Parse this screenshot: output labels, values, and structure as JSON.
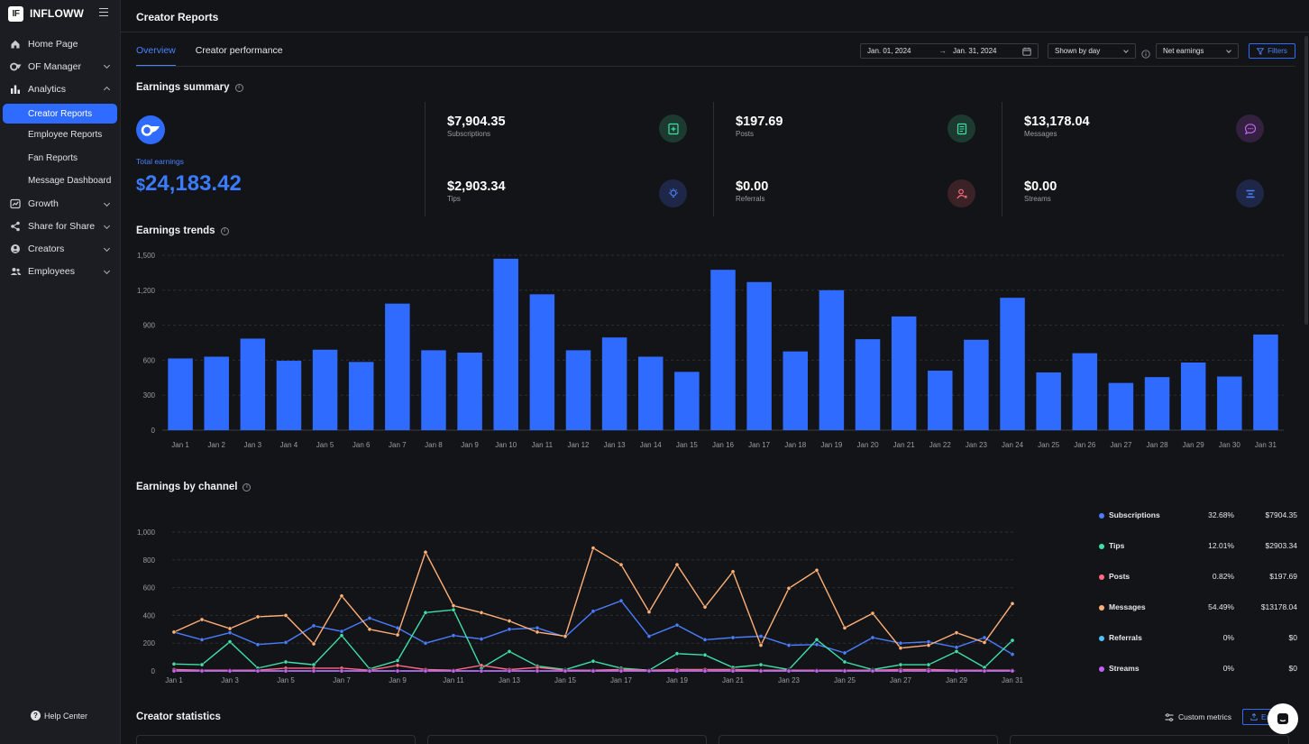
{
  "app": {
    "logo_text": "IF",
    "name": "INFLOWW"
  },
  "sidebar": {
    "items": [
      {
        "label": "Home Page",
        "icon": "home-icon",
        "chevron": ""
      },
      {
        "label": "OF Manager",
        "icon": "of-manager-icon",
        "chevron": "down"
      },
      {
        "label": "Analytics",
        "icon": "bar-chart-icon",
        "chevron": "up"
      },
      {
        "label": "Growth",
        "icon": "growth-icon",
        "chevron": "down"
      },
      {
        "label": "Share for Share",
        "icon": "share-icon",
        "chevron": "down"
      },
      {
        "label": "Creators",
        "icon": "user-circle-icon",
        "chevron": "down"
      },
      {
        "label": "Employees",
        "icon": "users-icon",
        "chevron": "down"
      }
    ],
    "analytics_sub": [
      "Creator Reports",
      "Employee Reports",
      "Fan Reports",
      "Message Dashboard"
    ],
    "active_sub": "Creator Reports",
    "help": "Help Center"
  },
  "header": {
    "title": "Creator Reports"
  },
  "tabs": {
    "overview": "Overview",
    "creator_performance": "Creator performance"
  },
  "controls": {
    "date_start": "Jan. 01, 2024",
    "arrow": "→",
    "date_end": "Jan. 31, 2024",
    "granularity": "Shown by day",
    "metric": "Net earnings",
    "filters": "Filters"
  },
  "summary": {
    "title": "Earnings summary",
    "total_label": "Total earnings",
    "total_currency": "$",
    "total_value": "24,183.42",
    "metrics": {
      "subscriptions": {
        "value": "$7,904.35",
        "label": "Subscriptions"
      },
      "tips": {
        "value": "$2,903.34",
        "label": "Tips"
      },
      "posts": {
        "value": "$197.69",
        "label": "Posts"
      },
      "referrals": {
        "value": "$0.00",
        "label": "Referrals"
      },
      "messages": {
        "value": "$13,178.04",
        "label": "Messages"
      },
      "streams": {
        "value": "$0.00",
        "label": "Streams"
      }
    }
  },
  "trends": {
    "title": "Earnings trends"
  },
  "channel": {
    "title": "Earnings by channel"
  },
  "chart_data": [
    {
      "type": "bar",
      "title": "",
      "categories": [
        "Jan 1",
        "Jan 2",
        "Jan 3",
        "Jan 4",
        "Jan 5",
        "Jan 6",
        "Jan 7",
        "Jan 8",
        "Jan 9",
        "Jan 10",
        "Jan 11",
        "Jan 12",
        "Jan 13",
        "Jan 14",
        "Jan 15",
        "Jan 16",
        "Jan 17",
        "Jan 18",
        "Jan 19",
        "Jan 20",
        "Jan 21",
        "Jan 22",
        "Jan 23",
        "Jan 24",
        "Jan 25",
        "Jan 26",
        "Jan 27",
        "Jan 28",
        "Jan 29",
        "Jan 30",
        "Jan 31"
      ],
      "values": [
        615,
        630,
        785,
        595,
        690,
        585,
        1085,
        685,
        665,
        1470,
        1165,
        685,
        795,
        630,
        500,
        1375,
        1270,
        675,
        1200,
        780,
        975,
        510,
        775,
        1135,
        495,
        660,
        405,
        455,
        580,
        460,
        820
      ],
      "yticks": [
        0,
        300,
        600,
        900,
        1200,
        1500
      ],
      "ytick_labels": [
        "0",
        "300",
        "600",
        "900",
        "1,200",
        "1,500"
      ],
      "ylim": [
        0,
        1500
      ],
      "color": "#2f6bff",
      "grid": true
    },
    {
      "type": "line",
      "title": "",
      "x": [
        "Jan 1",
        "Jan 2",
        "Jan 3",
        "Jan 4",
        "Jan 5",
        "Jan 6",
        "Jan 7",
        "Jan 8",
        "Jan 9",
        "Jan 10",
        "Jan 11",
        "Jan 12",
        "Jan 13",
        "Jan 14",
        "Jan 15",
        "Jan 16",
        "Jan 17",
        "Jan 18",
        "Jan 19",
        "Jan 20",
        "Jan 21",
        "Jan 22",
        "Jan 23",
        "Jan 24",
        "Jan 25",
        "Jan 26",
        "Jan 27",
        "Jan 28",
        "Jan 29",
        "Jan 30",
        "Jan 31"
      ],
      "xtick_labels": [
        "Jan 1",
        "Jan 3",
        "Jan 5",
        "Jan 7",
        "Jan 9",
        "Jan 11",
        "Jan 13",
        "Jan 15",
        "Jan 17",
        "Jan 19",
        "Jan 21",
        "Jan 23",
        "Jan 25",
        "Jan 27",
        "Jan 29",
        "Jan 31"
      ],
      "yticks": [
        0,
        200,
        400,
        600,
        800,
        1000
      ],
      "ytick_labels": [
        "0",
        "200",
        "400",
        "600",
        "800",
        "1,000"
      ],
      "ylim": [
        0,
        1000
      ],
      "grid": true,
      "series": [
        {
          "name": "Subscriptions",
          "color": "#4a7dff",
          "percent": "32.68%",
          "amount": "$7904.35",
          "values": [
            280,
            225,
            275,
            190,
            205,
            325,
            285,
            380,
            310,
            200,
            255,
            230,
            300,
            310,
            245,
            430,
            505,
            250,
            330,
            225,
            240,
            250,
            185,
            190,
            130,
            240,
            200,
            210,
            170,
            240,
            120
          ]
        },
        {
          "name": "Tips",
          "color": "#3ee0a6",
          "percent": "12.01%",
          "amount": "$2903.34",
          "values": [
            50,
            45,
            210,
            20,
            65,
            45,
            255,
            15,
            75,
            420,
            440,
            20,
            140,
            35,
            10,
            70,
            20,
            5,
            125,
            115,
            25,
            45,
            10,
            225,
            65,
            10,
            45,
            45,
            140,
            25,
            220
          ]
        },
        {
          "name": "Posts",
          "color": "#ff6b81",
          "percent": "0.82%",
          "amount": "$197.69",
          "values": [
            10,
            5,
            5,
            5,
            20,
            20,
            20,
            5,
            40,
            10,
            5,
            40,
            10,
            25,
            5,
            5,
            10,
            5,
            10,
            10,
            10,
            5,
            5,
            5,
            5,
            5,
            10,
            10,
            5,
            5,
            5
          ]
        },
        {
          "name": "Messages",
          "color": "#ffb077",
          "percent": "54.49%",
          "amount": "$13178.04",
          "values": [
            280,
            370,
            305,
            390,
            400,
            195,
            540,
            300,
            260,
            855,
            470,
            420,
            360,
            280,
            250,
            885,
            765,
            425,
            765,
            460,
            715,
            185,
            595,
            725,
            310,
            415,
            165,
            185,
            275,
            205,
            485
          ]
        },
        {
          "name": "Referrals",
          "color": "#4fc3f7",
          "percent": "0%",
          "amount": "$0",
          "values": [
            0,
            0,
            0,
            0,
            0,
            0,
            0,
            0,
            0,
            0,
            0,
            0,
            0,
            0,
            0,
            0,
            0,
            0,
            0,
            0,
            0,
            0,
            0,
            0,
            0,
            0,
            0,
            0,
            0,
            0,
            0
          ]
        },
        {
          "name": "Streams",
          "color": "#c561f5",
          "percent": "0%",
          "amount": "$0",
          "values": [
            0,
            0,
            0,
            0,
            0,
            0,
            0,
            0,
            0,
            0,
            0,
            0,
            0,
            0,
            0,
            0,
            0,
            0,
            0,
            0,
            0,
            0,
            0,
            0,
            0,
            0,
            0,
            0,
            0,
            0,
            0
          ]
        }
      ]
    }
  ],
  "statistics": {
    "title": "Creator statistics",
    "custom_metrics": "Custom metrics",
    "export": "Ex"
  }
}
